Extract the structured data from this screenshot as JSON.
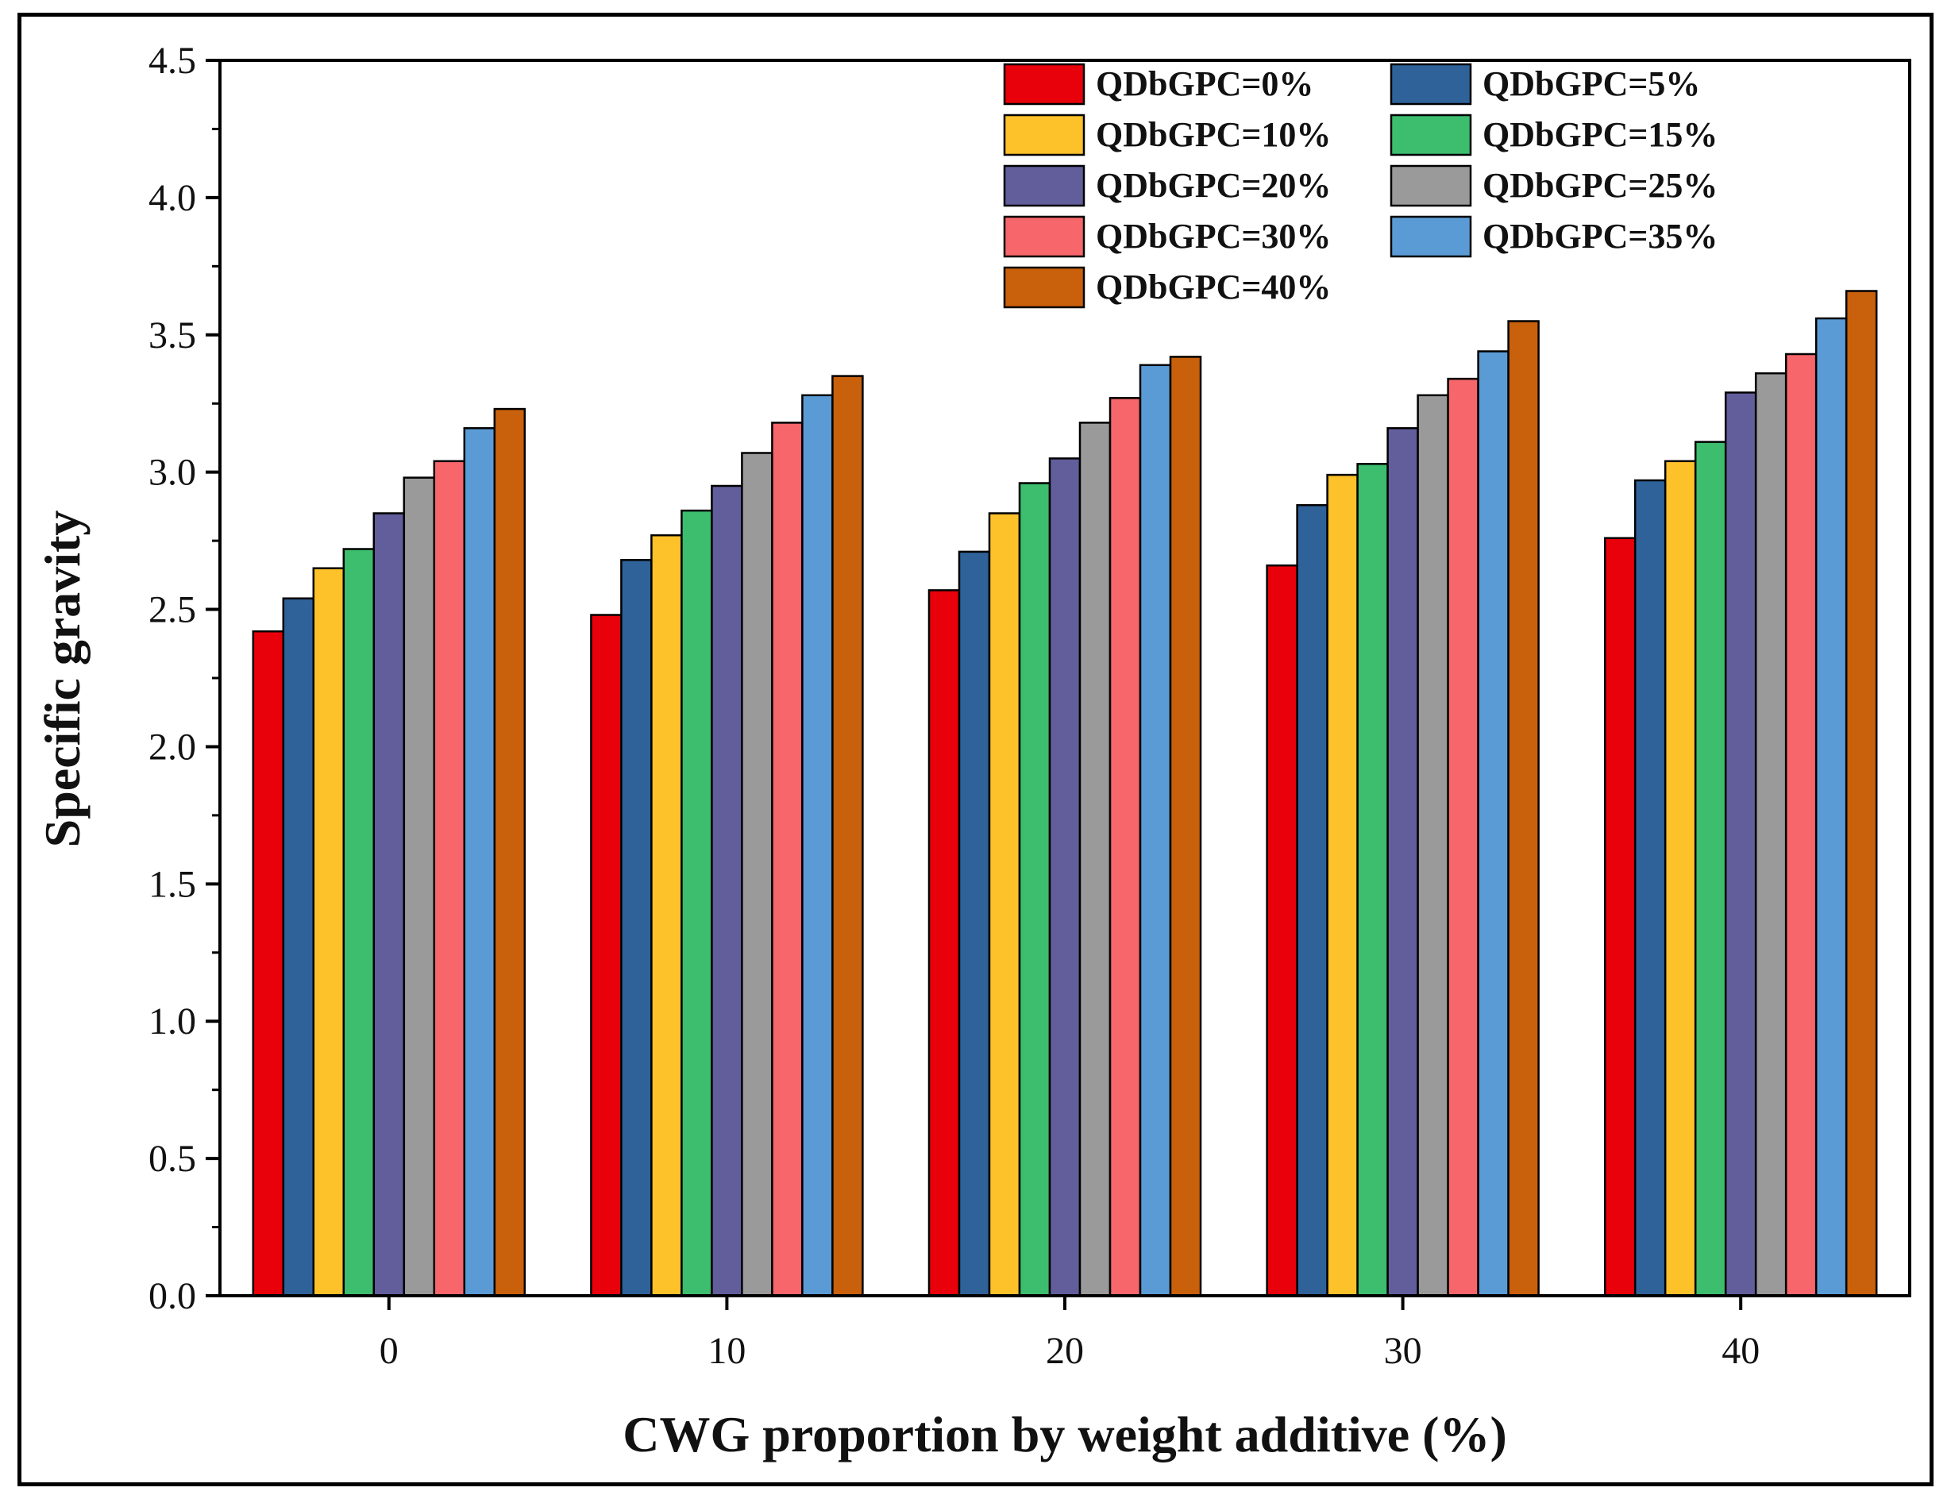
{
  "chart_data": {
    "type": "bar",
    "title": "",
    "xlabel": "CWG proportion by weight additive (%)",
    "ylabel": "Specific gravity",
    "categories": [
      "0",
      "10",
      "20",
      "30",
      "40"
    ],
    "ylim": [
      0,
      4.5
    ],
    "yticks": [
      "0.0",
      "0.5",
      "1.0",
      "1.5",
      "2.0",
      "2.5",
      "3.0",
      "3.5",
      "4.0",
      "4.5"
    ],
    "legend_position": "top-right",
    "grid": false,
    "series": [
      {
        "name": "QDbGPC=0%",
        "color": "#e8000b",
        "values": [
          2.42,
          2.48,
          2.57,
          2.66,
          2.76
        ]
      },
      {
        "name": "QDbGPC=5%",
        "color": "#2f6299",
        "values": [
          2.54,
          2.68,
          2.71,
          2.88,
          2.97
        ]
      },
      {
        "name": "QDbGPC=10%",
        "color": "#fdc12a",
        "values": [
          2.65,
          2.77,
          2.85,
          2.99,
          3.04
        ]
      },
      {
        "name": "QDbGPC=15%",
        "color": "#3dbd6e",
        "values": [
          2.72,
          2.86,
          2.96,
          3.03,
          3.11
        ]
      },
      {
        "name": "QDbGPC=20%",
        "color": "#625e9c",
        "values": [
          2.85,
          2.95,
          3.05,
          3.16,
          3.29
        ]
      },
      {
        "name": "QDbGPC=25%",
        "color": "#9a9a9a",
        "values": [
          2.98,
          3.07,
          3.18,
          3.28,
          3.36
        ]
      },
      {
        "name": "QDbGPC=30%",
        "color": "#f7666b",
        "values": [
          3.04,
          3.18,
          3.27,
          3.34,
          3.43
        ]
      },
      {
        "name": "QDbGPC=35%",
        "color": "#5b9bd5",
        "values": [
          3.16,
          3.28,
          3.39,
          3.44,
          3.56
        ]
      },
      {
        "name": "QDbGPC=40%",
        "color": "#c9600c",
        "values": [
          3.23,
          3.35,
          3.42,
          3.55,
          3.66
        ]
      }
    ]
  }
}
